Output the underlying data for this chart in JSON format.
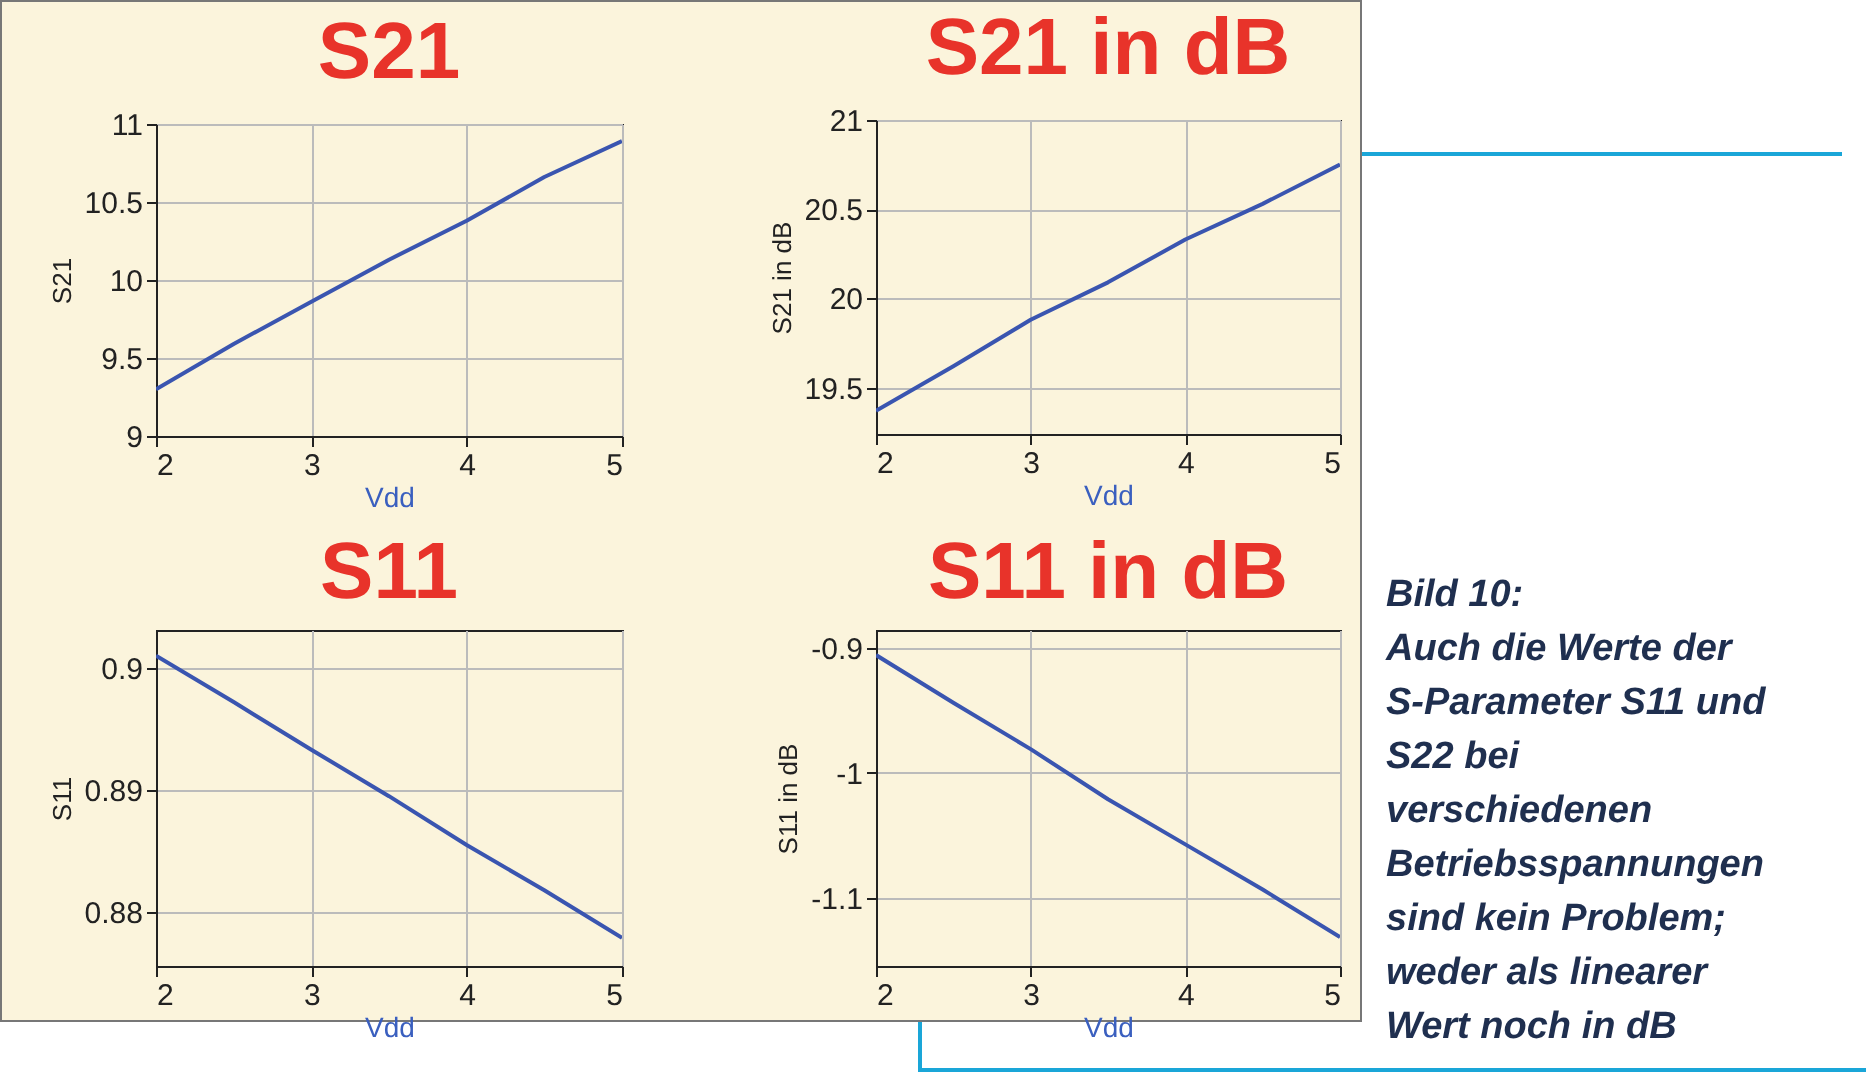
{
  "chart_data": [
    {
      "type": "line",
      "title": "S21",
      "xlabel": "Vdd",
      "ylabel": "S21",
      "x": [
        2,
        2.5,
        3,
        3.5,
        4,
        4.5,
        5
      ],
      "series": [
        {
          "color": "#3a55b0",
          "values": [
            9.3,
            9.59,
            9.86,
            10.13,
            10.38,
            10.66,
            10.89
          ]
        }
      ],
      "xlim": [
        2,
        5
      ],
      "xticks": [
        2,
        3,
        4,
        5
      ],
      "ylim": [
        9,
        11
      ],
      "yticks": [
        9,
        9.5,
        10,
        10.5,
        11
      ],
      "grid": true
    },
    {
      "type": "line",
      "title": "S21 in dB",
      "xlabel": "Vdd",
      "ylabel": "S21 in dB",
      "x": [
        2,
        2.5,
        3,
        3.5,
        4,
        4.5,
        5
      ],
      "series": [
        {
          "color": "#3a55b0",
          "values": [
            19.37,
            19.62,
            19.88,
            20.09,
            20.33,
            20.53,
            20.75
          ]
        }
      ],
      "xlim": [
        2,
        5
      ],
      "xticks": [
        2,
        3,
        4,
        5
      ],
      "ylim": [
        19.24,
        21
      ],
      "yticks": [
        19.5,
        20,
        20.5,
        21
      ],
      "grid": true
    },
    {
      "type": "line",
      "title": "S11",
      "xlabel": "Vdd",
      "ylabel": "S11",
      "x": [
        2,
        2.5,
        3,
        3.5,
        4,
        4.5,
        5
      ],
      "series": [
        {
          "color": "#3a55b0",
          "values": [
            0.901,
            0.8972,
            0.8933,
            0.8895,
            0.8855,
            0.8818,
            0.8779
          ]
        }
      ],
      "xlim": [
        2,
        5
      ],
      "xticks": [
        2,
        3,
        4,
        5
      ],
      "ylim": [
        0.8756,
        0.9031
      ],
      "yticks": [
        0.88,
        0.89,
        0.9
      ],
      "grid": true
    },
    {
      "type": "line",
      "title": "S11 in dB",
      "xlabel": "Vdd",
      "ylabel": "S11 in dB",
      "x": [
        2,
        2.5,
        3,
        3.5,
        4,
        4.5,
        5
      ],
      "series": [
        {
          "color": "#3a55b0",
          "values": [
            -0.906,
            -0.944,
            -0.981,
            -1.021,
            -1.057,
            -1.093,
            -1.131
          ]
        }
      ],
      "xlim": [
        2,
        5
      ],
      "xticks": [
        2,
        3,
        4,
        5
      ],
      "ylim": [
        -1.154,
        -0.886
      ],
      "yticks": [
        -1.1,
        -1,
        -0.9
      ],
      "grid": true
    },
    {
      "type": "other",
      "annotations": [
        "Bild 10:",
        "Auch die Werte der S-Parameter S11 und S22 bei verschiedenen Betriebsspannungen sind kein Problem; weder als linearer Wert noch in dB"
      ]
    }
  ]
}
